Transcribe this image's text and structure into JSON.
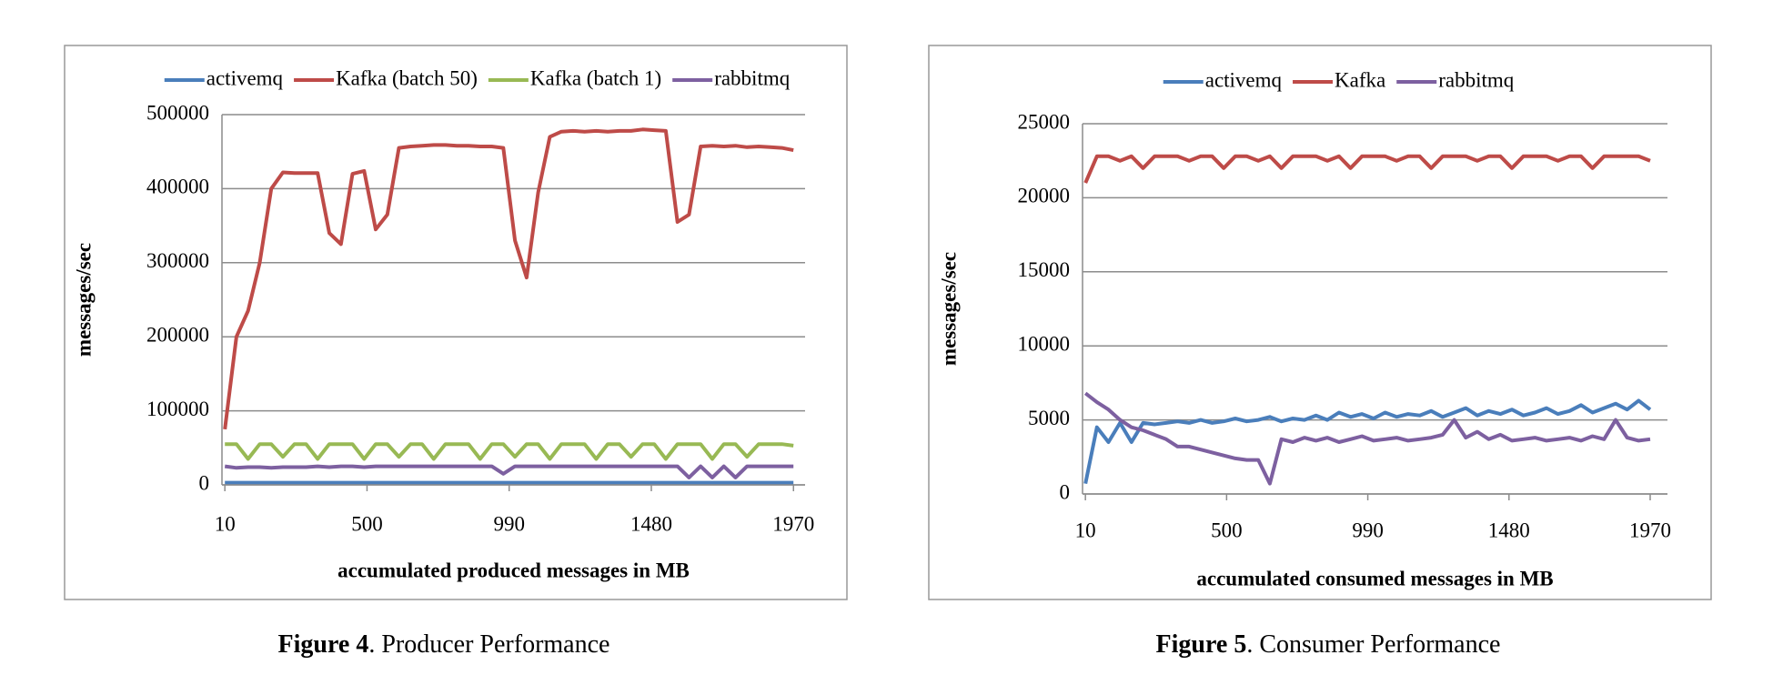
{
  "chart_data": [
    {
      "type": "line",
      "x_label": "accumulated produced messages in MB",
      "y_label": "messages/sec",
      "caption_label": "Figure 4",
      "caption_text": ". Producer Performance",
      "grid": true,
      "legend": "top",
      "x": [
        10,
        50,
        90,
        130,
        170,
        210,
        250,
        290,
        330,
        370,
        410,
        450,
        490,
        530,
        570,
        610,
        650,
        690,
        730,
        770,
        810,
        850,
        890,
        930,
        970,
        1010,
        1050,
        1090,
        1130,
        1170,
        1210,
        1250,
        1290,
        1330,
        1370,
        1410,
        1450,
        1490,
        1530,
        1570,
        1610,
        1650,
        1690,
        1730,
        1770,
        1810,
        1850,
        1890,
        1930,
        1970
      ],
      "xlim": [
        0,
        2010
      ],
      "xticks": [
        10,
        500,
        990,
        1480,
        1970
      ],
      "ylim": [
        0,
        500000
      ],
      "yticks": [
        0,
        100000,
        200000,
        300000,
        400000,
        500000
      ],
      "series": [
        {
          "name": "activemq",
          "color": "#4a7ebb",
          "values": [
            3000,
            3000,
            3000,
            3000,
            3000,
            3000,
            3000,
            3000,
            3000,
            3000,
            3000,
            3000,
            3000,
            3000,
            3000,
            3000,
            3000,
            3000,
            3000,
            3000,
            3000,
            3000,
            3000,
            3000,
            3000,
            3000,
            3000,
            3000,
            3000,
            3000,
            3000,
            3000,
            3000,
            3000,
            3000,
            3000,
            3000,
            3000,
            3000,
            3000,
            3000,
            3000,
            3000,
            3000,
            3000,
            3000,
            3000,
            3000,
            3000,
            3000
          ]
        },
        {
          "name": "Kafka (batch 50)",
          "color": "#be4b48",
          "values": [
            75000,
            200000,
            235000,
            300000,
            400000,
            422000,
            421000,
            421000,
            421000,
            340000,
            325000,
            420000,
            424000,
            345000,
            365000,
            455000,
            457000,
            458000,
            459000,
            459000,
            458000,
            458000,
            457000,
            457000,
            455000,
            330000,
            280000,
            395000,
            470000,
            477000,
            478000,
            477000,
            478000,
            477000,
            478000,
            478000,
            480000,
            479000,
            478000,
            355000,
            365000,
            457000,
            458000,
            457000,
            458000,
            456000,
            457000,
            456000,
            455000,
            452000
          ]
        },
        {
          "name": "Kafka (batch 1)",
          "color": "#98b954",
          "values": [
            55000,
            55000,
            35000,
            55000,
            55000,
            38000,
            55000,
            55000,
            35000,
            55000,
            55000,
            55000,
            35000,
            55000,
            55000,
            38000,
            55000,
            55000,
            35000,
            55000,
            55000,
            55000,
            35000,
            55000,
            55000,
            38000,
            55000,
            55000,
            35000,
            55000,
            55000,
            55000,
            35000,
            55000,
            55000,
            38000,
            55000,
            55000,
            35000,
            55000,
            55000,
            55000,
            35000,
            55000,
            55000,
            38000,
            55000,
            55000,
            55000,
            53000
          ]
        },
        {
          "name": "rabbitmq",
          "color": "#7d60a0",
          "values": [
            25000,
            23000,
            24000,
            24000,
            23000,
            24000,
            24000,
            24000,
            25000,
            24000,
            25000,
            25000,
            24000,
            25000,
            25000,
            25000,
            25000,
            25000,
            25000,
            25000,
            25000,
            25000,
            25000,
            25000,
            15000,
            25000,
            25000,
            25000,
            25000,
            25000,
            25000,
            25000,
            25000,
            25000,
            25000,
            25000,
            25000,
            25000,
            25000,
            25000,
            10000,
            25000,
            10000,
            25000,
            10000,
            25000,
            25000,
            25000,
            25000,
            25000
          ]
        }
      ]
    },
    {
      "type": "line",
      "x_label": "accumulated consumed messages in MB",
      "y_label": "messages/sec",
      "caption_label": "Figure 5",
      "caption_text": ". Consumer Performance",
      "grid": true,
      "legend": "top",
      "x": [
        10,
        50,
        90,
        130,
        170,
        210,
        250,
        290,
        330,
        370,
        410,
        450,
        490,
        530,
        570,
        610,
        650,
        690,
        730,
        770,
        810,
        850,
        890,
        930,
        970,
        1010,
        1050,
        1090,
        1130,
        1170,
        1210,
        1250,
        1290,
        1330,
        1370,
        1410,
        1450,
        1490,
        1530,
        1570,
        1610,
        1650,
        1690,
        1730,
        1770,
        1810,
        1850,
        1890,
        1930,
        1970
      ],
      "xlim": [
        0,
        2030
      ],
      "xticks": [
        10,
        500,
        990,
        1480,
        1970
      ],
      "ylim": [
        0,
        25000
      ],
      "yticks": [
        0,
        5000,
        10000,
        15000,
        20000,
        25000
      ],
      "series": [
        {
          "name": "activemq",
          "color": "#4a7ebb",
          "values": [
            700,
            4500,
            3500,
            4800,
            3500,
            4800,
            4700,
            4800,
            4900,
            4800,
            5000,
            4800,
            4900,
            5100,
            4900,
            5000,
            5200,
            4900,
            5100,
            5000,
            5300,
            5000,
            5500,
            5200,
            5400,
            5100,
            5500,
            5200,
            5400,
            5300,
            5600,
            5200,
            5500,
            5800,
            5300,
            5600,
            5400,
            5700,
            5300,
            5500,
            5800,
            5400,
            5600,
            6000,
            5500,
            5800,
            6100,
            5700,
            6300,
            5700
          ]
        },
        {
          "name": "Kafka",
          "color": "#be4b48",
          "values": [
            21000,
            22800,
            22800,
            22500,
            22800,
            22000,
            22800,
            22800,
            22800,
            22500,
            22800,
            22800,
            22000,
            22800,
            22800,
            22500,
            22800,
            22000,
            22800,
            22800,
            22800,
            22500,
            22800,
            22000,
            22800,
            22800,
            22800,
            22500,
            22800,
            22800,
            22000,
            22800,
            22800,
            22800,
            22500,
            22800,
            22800,
            22000,
            22800,
            22800,
            22800,
            22500,
            22800,
            22800,
            22000,
            22800,
            22800,
            22800,
            22800,
            22500
          ]
        },
        {
          "name": "rabbitmq",
          "color": "#7d60a0",
          "values": [
            6800,
            6200,
            5700,
            5000,
            4500,
            4300,
            4000,
            3700,
            3200,
            3200,
            3000,
            2800,
            2600,
            2400,
            2300,
            2300,
            700,
            3700,
            3500,
            3800,
            3600,
            3800,
            3500,
            3700,
            3900,
            3600,
            3700,
            3800,
            3600,
            3700,
            3800,
            4000,
            5000,
            3800,
            4200,
            3700,
            4000,
            3600,
            3700,
            3800,
            3600,
            3700,
            3800,
            3600,
            3900,
            3700,
            5000,
            3800,
            3600,
            3700
          ]
        }
      ]
    }
  ]
}
